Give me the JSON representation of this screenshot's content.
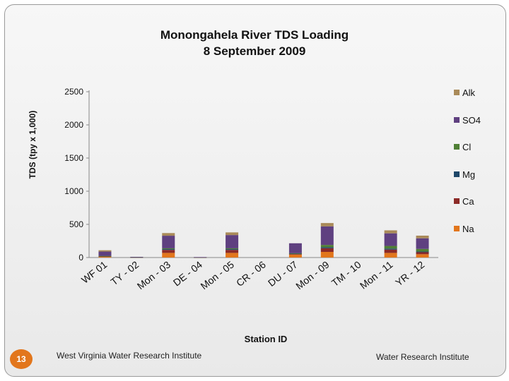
{
  "slide": {
    "page_number": "13",
    "footer_left": "West Virginia Water Research Institute",
    "footer_right": "Water Research Institute"
  },
  "chart_data": {
    "type": "bar",
    "stacked": true,
    "title": "Monongahela River TDS Loading",
    "subtitle": "8 September 2009",
    "xlabel": "Station ID",
    "ylabel": "TDS (tpy x 1,000)",
    "ylim": [
      0,
      2500
    ],
    "yticks": [
      0,
      500,
      1000,
      1500,
      2000,
      2500
    ],
    "grid": false,
    "legend_position": "right",
    "categories": [
      "WF 01",
      "TY - 02",
      "Mon - 03",
      "DE - 04",
      "Mon - 05",
      "CR - 06",
      "DU - 07",
      "Mon - 09",
      "TM - 10",
      "Mon - 11",
      "YR - 12"
    ],
    "series": [
      {
        "name": "Na",
        "color": "#e2761c",
        "values": [
          15,
          3,
          70,
          2,
          70,
          0,
          45,
          85,
          0,
          70,
          50
        ]
      },
      {
        "name": "Ca",
        "color": "#8c2a27",
        "values": [
          5,
          2,
          45,
          1,
          45,
          0,
          10,
          55,
          0,
          50,
          30
        ]
      },
      {
        "name": "Mg",
        "color": "#1d4668",
        "values": [
          3,
          1,
          12,
          1,
          12,
          0,
          5,
          15,
          0,
          15,
          10
        ]
      },
      {
        "name": "Cl",
        "color": "#4f7f35",
        "values": [
          2,
          1,
          12,
          1,
          12,
          0,
          5,
          35,
          0,
          40,
          40
        ]
      },
      {
        "name": "SO4",
        "color": "#5f4080",
        "values": [
          65,
          3,
          190,
          2,
          200,
          0,
          150,
          280,
          0,
          190,
          160
        ]
      },
      {
        "name": "Alk",
        "color": "#a98a59",
        "values": [
          20,
          0,
          40,
          0,
          40,
          0,
          0,
          50,
          0,
          45,
          40
        ]
      }
    ]
  }
}
